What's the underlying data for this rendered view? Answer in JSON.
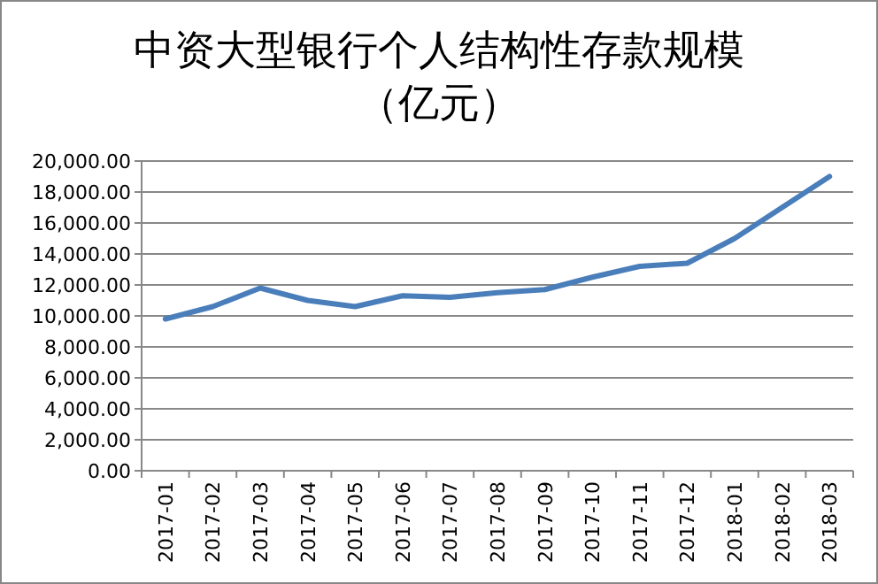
{
  "chart_data": {
    "type": "line",
    "title": "中资大型银行个人结构性存款规模（亿元）",
    "categories": [
      "2017-01",
      "2017-02",
      "2017-03",
      "2017-04",
      "2017-05",
      "2017-06",
      "2017-07",
      "2017-08",
      "2017-09",
      "2017-10",
      "2017-11",
      "2017-12",
      "2018-01",
      "2018-02",
      "2018-03"
    ],
    "series": [
      {
        "color": "#4a7ebb",
        "values": [
          9800,
          10600,
          11800,
          11000,
          10600,
          11300,
          11200,
          11500,
          11700,
          12500,
          13200,
          13400,
          15000,
          17000,
          19000
        ]
      }
    ],
    "ylim": [
      0,
      20000
    ],
    "yticks": [
      {
        "value": 0,
        "label": "0.00"
      },
      {
        "value": 2000,
        "label": "2,000.00"
      },
      {
        "value": 4000,
        "label": "4,000.00"
      },
      {
        "value": 6000,
        "label": "6,000.00"
      },
      {
        "value": 8000,
        "label": "8,000.00"
      },
      {
        "value": 10000,
        "label": "10,000.00"
      },
      {
        "value": 12000,
        "label": "12,000.00"
      },
      {
        "value": 14000,
        "label": "14,000.00"
      },
      {
        "value": 16000,
        "label": "16,000.00"
      },
      {
        "value": 18000,
        "label": "18,000.00"
      },
      {
        "value": 20000,
        "label": "20,000.00"
      }
    ],
    "grid": "y",
    "marker": "none",
    "line_style": "solid"
  }
}
